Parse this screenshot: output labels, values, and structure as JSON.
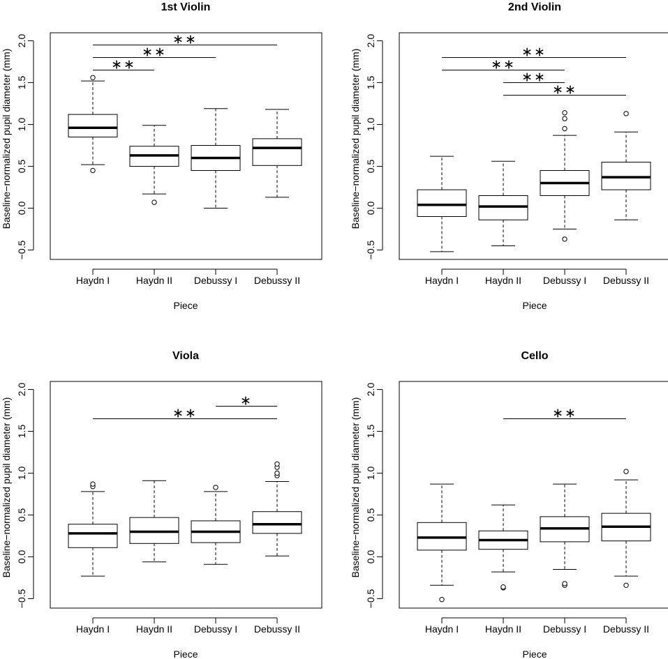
{
  "chart_data": [
    {
      "type": "boxplot",
      "title": "1st Violin",
      "xlabel": "Piece",
      "ylabel": "Baseline−normalized pupil diameter (mm)",
      "categories": [
        "Haydn I",
        "Haydn II",
        "Debussy I",
        "Debussy II"
      ],
      "ylim": [
        -0.6,
        2.05
      ],
      "yticks": [
        -0.5,
        0.0,
        0.5,
        1.0,
        1.5,
        2.0
      ],
      "ytick_labels": [
        "−0.5",
        "0.0",
        "0.5",
        "1.0",
        "1.5",
        "2.0"
      ],
      "boxes": [
        {
          "whisker_low": 0.52,
          "q1": 0.85,
          "median": 0.96,
          "q3": 1.12,
          "whisker_high": 1.52,
          "outliers": [
            0.45,
            1.56
          ]
        },
        {
          "whisker_low": 0.17,
          "q1": 0.5,
          "median": 0.63,
          "q3": 0.74,
          "whisker_high": 0.99,
          "outliers": [
            0.07
          ]
        },
        {
          "whisker_low": 0.0,
          "q1": 0.45,
          "median": 0.6,
          "q3": 0.75,
          "whisker_high": 1.19,
          "outliers": []
        },
        {
          "whisker_low": 0.13,
          "q1": 0.51,
          "median": 0.72,
          "q3": 0.83,
          "whisker_high": 1.18,
          "outliers": []
        }
      ],
      "significance": [
        {
          "from": 0,
          "to": 1,
          "y": 1.65,
          "label": "∗∗"
        },
        {
          "from": 0,
          "to": 2,
          "y": 1.8,
          "label": "∗∗"
        },
        {
          "from": 0,
          "to": 3,
          "y": 1.95,
          "label": "∗∗"
        }
      ]
    },
    {
      "type": "boxplot",
      "title": "2nd Violin",
      "xlabel": "Piece",
      "ylabel": "Baseline−normalized pupil diameter (mm)",
      "categories": [
        "Haydn I",
        "Haydn II",
        "Debussy I",
        "Debussy II"
      ],
      "ylim": [
        -0.6,
        2.05
      ],
      "yticks": [
        -0.5,
        0.0,
        0.5,
        1.0,
        1.5,
        2.0
      ],
      "ytick_labels": [
        "−0.5",
        "0.0",
        "0.5",
        "1.0",
        "1.5",
        "2.0"
      ],
      "boxes": [
        {
          "whisker_low": -0.52,
          "q1": -0.1,
          "median": 0.04,
          "q3": 0.22,
          "whisker_high": 0.62,
          "outliers": []
        },
        {
          "whisker_low": -0.45,
          "q1": -0.14,
          "median": 0.02,
          "q3": 0.15,
          "whisker_high": 0.56,
          "outliers": []
        },
        {
          "whisker_low": -0.25,
          "q1": 0.15,
          "median": 0.3,
          "q3": 0.45,
          "whisker_high": 0.87,
          "outliers": [
            -0.37,
            0.95,
            1.07,
            1.14
          ]
        },
        {
          "whisker_low": -0.14,
          "q1": 0.22,
          "median": 0.37,
          "q3": 0.55,
          "whisker_high": 0.91,
          "outliers": [
            1.13
          ]
        }
      ],
      "significance": [
        {
          "from": 1,
          "to": 3,
          "y": 1.35,
          "label": "∗∗"
        },
        {
          "from": 1,
          "to": 2,
          "y": 1.5,
          "label": "∗∗"
        },
        {
          "from": 0,
          "to": 2,
          "y": 1.65,
          "label": "∗∗"
        },
        {
          "from": 0,
          "to": 3,
          "y": 1.8,
          "label": "∗∗"
        }
      ]
    },
    {
      "type": "boxplot",
      "title": "Viola",
      "xlabel": "Piece",
      "ylabel": "Baseline−normalized pupil diameter (mm)",
      "categories": [
        "Haydn I",
        "Haydn II",
        "Debussy I",
        "Debussy II"
      ],
      "ylim": [
        -0.6,
        2.05
      ],
      "yticks": [
        -0.5,
        0.0,
        0.5,
        1.0,
        1.5,
        2.0
      ],
      "ytick_labels": [
        "−0.5",
        "0.0",
        "0.5",
        "1.0",
        "1.5",
        "2.0"
      ],
      "boxes": [
        {
          "whisker_low": -0.23,
          "q1": 0.11,
          "median": 0.28,
          "q3": 0.39,
          "whisker_high": 0.78,
          "outliers": [
            0.84,
            0.87
          ]
        },
        {
          "whisker_low": -0.06,
          "q1": 0.16,
          "median": 0.3,
          "q3": 0.47,
          "whisker_high": 0.91,
          "outliers": []
        },
        {
          "whisker_low": -0.09,
          "q1": 0.17,
          "median": 0.3,
          "q3": 0.43,
          "whisker_high": 0.78,
          "outliers": [
            0.83
          ]
        },
        {
          "whisker_low": 0.01,
          "q1": 0.28,
          "median": 0.39,
          "q3": 0.54,
          "whisker_high": 0.9,
          "outliers": [
            0.97,
            1.0,
            1.07,
            1.11
          ]
        }
      ],
      "significance": [
        {
          "from": 0,
          "to": 3,
          "y": 1.65,
          "label": "∗∗"
        },
        {
          "from": 2,
          "to": 3,
          "y": 1.8,
          "label": "∗"
        }
      ]
    },
    {
      "type": "boxplot",
      "title": "Cello",
      "xlabel": "Piece",
      "ylabel": "Baseline−normalized pupil diameter (mm)",
      "categories": [
        "Haydn I",
        "Haydn II",
        "Debussy I",
        "Debussy II"
      ],
      "ylim": [
        -0.6,
        2.05
      ],
      "yticks": [
        -0.5,
        0.0,
        0.5,
        1.0,
        1.5,
        2.0
      ],
      "ytick_labels": [
        "−0.5",
        "0.0",
        "0.5",
        "1.0",
        "1.5",
        "2.0"
      ],
      "boxes": [
        {
          "whisker_low": -0.34,
          "q1": 0.08,
          "median": 0.23,
          "q3": 0.41,
          "whisker_high": 0.87,
          "outliers": [
            -0.51
          ]
        },
        {
          "whisker_low": -0.18,
          "q1": 0.09,
          "median": 0.2,
          "q3": 0.31,
          "whisker_high": 0.62,
          "outliers": [
            -0.37,
            -0.36
          ]
        },
        {
          "whisker_low": -0.15,
          "q1": 0.18,
          "median": 0.34,
          "q3": 0.48,
          "whisker_high": 0.87,
          "outliers": [
            -0.34,
            -0.32
          ]
        },
        {
          "whisker_low": -0.23,
          "q1": 0.19,
          "median": 0.36,
          "q3": 0.52,
          "whisker_high": 0.92,
          "outliers": [
            -0.34,
            1.02
          ]
        }
      ],
      "significance": [
        {
          "from": 1,
          "to": 3,
          "y": 1.65,
          "label": "∗∗"
        }
      ]
    }
  ]
}
